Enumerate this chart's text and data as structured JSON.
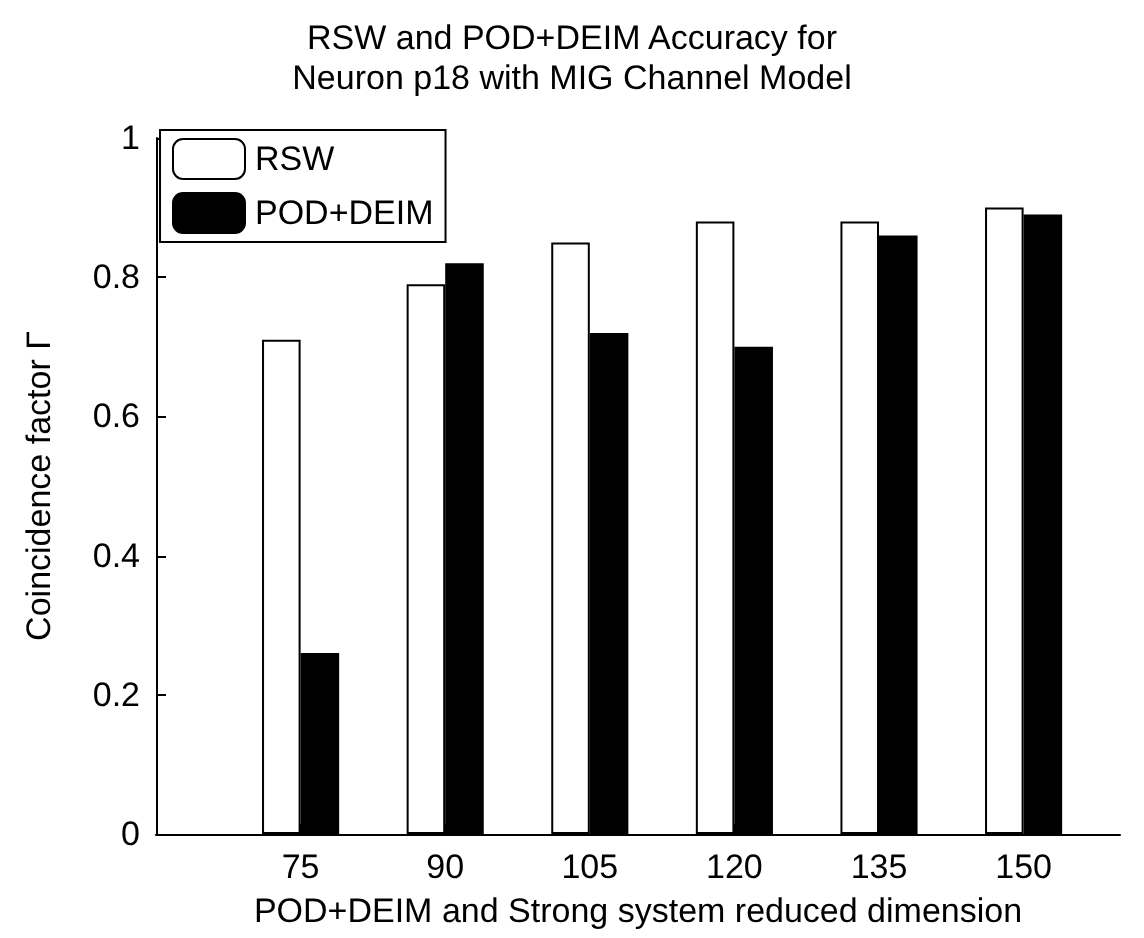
{
  "chart_data": {
    "type": "bar",
    "title": "RSW and POD+DEIM Accuracy for\nNeuron p18 with MIG Channel Model",
    "xlabel": "POD+DEIM and Strong system reduced dimension",
    "ylabel": "Coincidence factor Γ",
    "x": [
      75,
      90,
      105,
      120,
      135,
      150
    ],
    "xlim": [
      60,
      160
    ],
    "xticks": [
      75,
      90,
      105,
      120,
      135,
      150
    ],
    "ylim": [
      0,
      1
    ],
    "yticks": [
      0,
      0.2,
      0.4,
      0.6,
      0.8,
      1
    ],
    "series": [
      {
        "name": "RSW",
        "color": "#ffffff",
        "values": [
          0.71,
          0.79,
          0.85,
          0.88,
          0.88,
          0.9
        ]
      },
      {
        "name": "POD+DEIM",
        "color": "#000000",
        "values": [
          0.26,
          0.82,
          0.72,
          0.7,
          0.86,
          0.89
        ]
      }
    ],
    "grid": false,
    "legend": "top left"
  }
}
